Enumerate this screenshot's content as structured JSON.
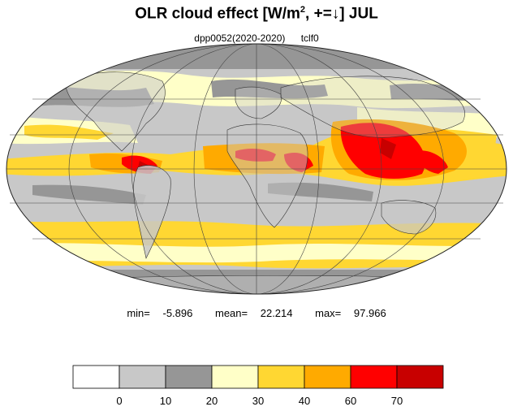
{
  "title": {
    "main": "OLR cloud effect [W/m",
    "sup": "2",
    "tail": ", +=↓]  JUL"
  },
  "subtitle": {
    "experiment": "dpp0052(2020-2020)",
    "variable": "tclf0"
  },
  "stats": {
    "min_label": "min=",
    "min_value": "-5.896",
    "mean_label": "mean=",
    "mean_value": "22.214",
    "max_label": "max=",
    "max_value": "97.966"
  },
  "legend": {
    "colors": [
      "#ffffff",
      "#c8c8c8",
      "#969696",
      "#ffffc8",
      "#ffd732",
      "#ffaa00",
      "#ff0000",
      "#c80000"
    ],
    "ticks": [
      "0",
      "10",
      "20",
      "30",
      "40",
      "60",
      "70"
    ]
  },
  "map": {
    "projection": "mollweide",
    "ocean_base_color": "#c8c8c8",
    "coastline_color": "#333333",
    "grid_color": "#444444"
  }
}
